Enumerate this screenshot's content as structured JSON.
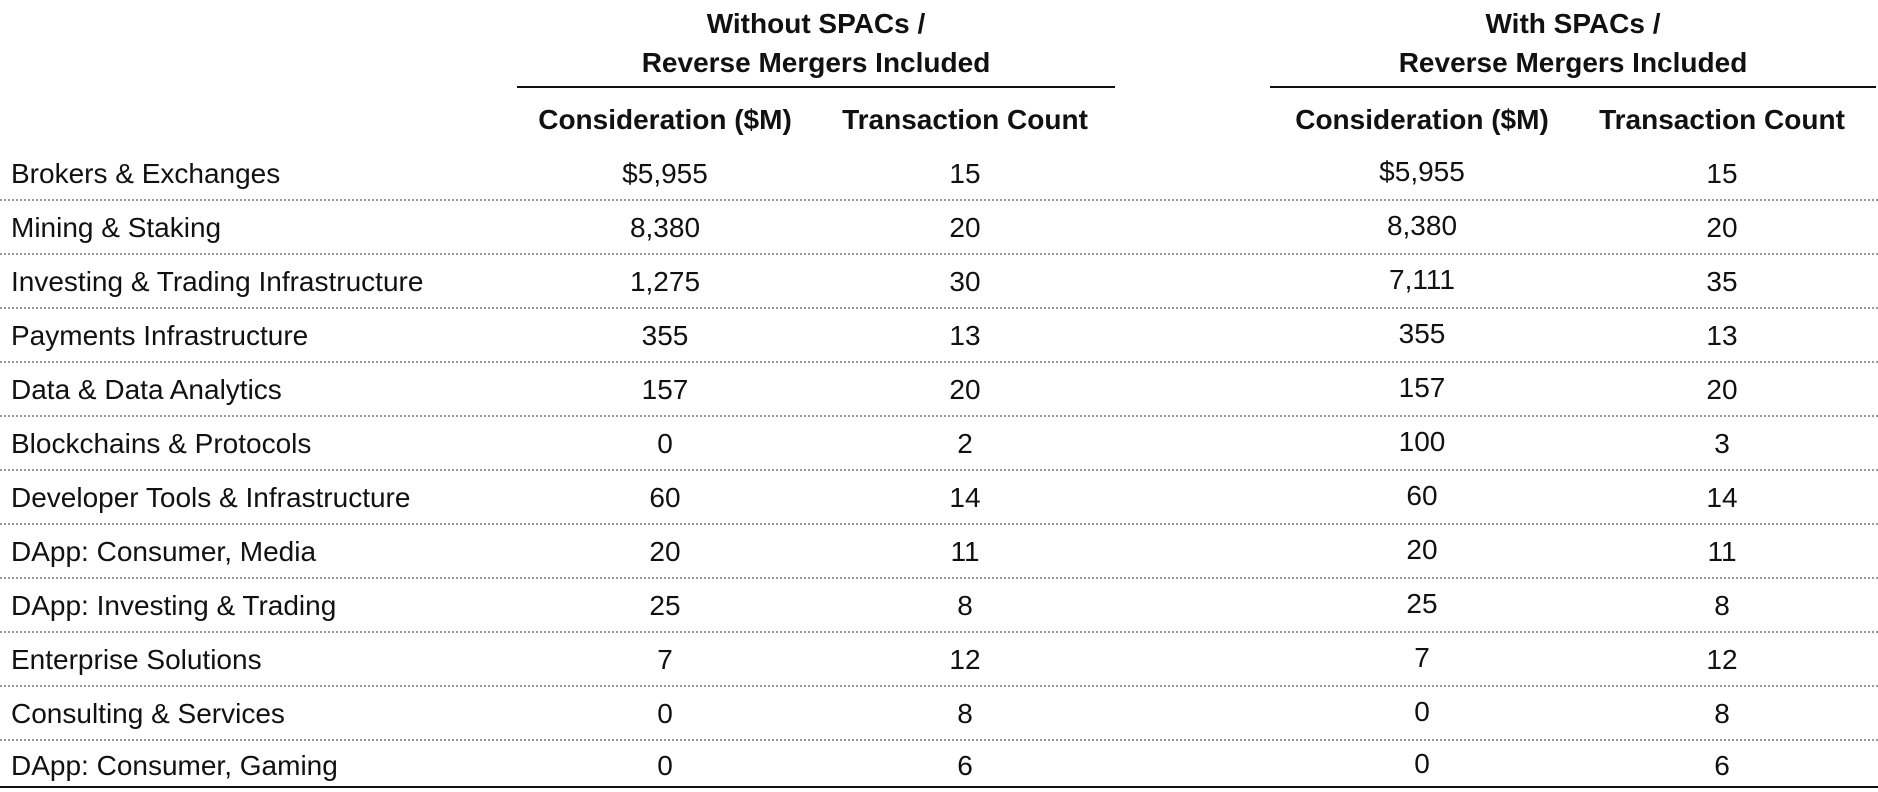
{
  "groups": [
    {
      "line1": "Without SPACs /",
      "line2": "Reverse Mergers Included"
    },
    {
      "line1": "With SPACs /",
      "line2": "Reverse Mergers Included"
    }
  ],
  "column_headers": {
    "consideration": "Consideration ($M)",
    "transaction_count": "Transaction Count"
  },
  "rows": [
    {
      "label": "Brokers & Exchanges",
      "without_consideration": "$5,955",
      "without_count": "15",
      "with_consideration": "$5,955",
      "with_count": "15"
    },
    {
      "label": "Mining & Staking",
      "without_consideration": "8,380",
      "without_count": "20",
      "with_consideration": "8,380",
      "with_count": "20"
    },
    {
      "label": "Investing & Trading Infrastructure",
      "without_consideration": "1,275",
      "without_count": "30",
      "with_consideration": "7,111",
      "with_count": "35"
    },
    {
      "label": "Payments Infrastructure",
      "without_consideration": "355",
      "without_count": "13",
      "with_consideration": "355",
      "with_count": "13"
    },
    {
      "label": "Data & Data Analytics",
      "without_consideration": "157",
      "without_count": "20",
      "with_consideration": "157",
      "with_count": "20"
    },
    {
      "label": "Blockchains & Protocols",
      "without_consideration": "0",
      "without_count": "2",
      "with_consideration": "100",
      "with_count": "3"
    },
    {
      "label": "Developer Tools & Infrastructure",
      "without_consideration": "60",
      "without_count": "14",
      "with_consideration": "60",
      "with_count": "14"
    },
    {
      "label": "DApp: Consumer, Media",
      "without_consideration": "20",
      "without_count": "11",
      "with_consideration": "20",
      "with_count": "11"
    },
    {
      "label": "DApp: Investing & Trading",
      "without_consideration": "25",
      "without_count": "8",
      "with_consideration": "25",
      "with_count": "8"
    },
    {
      "label": "Enterprise Solutions",
      "without_consideration": "7",
      "without_count": "12",
      "with_consideration": "7",
      "with_count": "12"
    },
    {
      "label": "Consulting & Services",
      "without_consideration": "0",
      "without_count": "8",
      "with_consideration": "0",
      "with_count": "8"
    },
    {
      "label": "DApp: Consumer, Gaming",
      "without_consideration": "0",
      "without_count": "6",
      "with_consideration": "0",
      "with_count": "6"
    }
  ]
}
